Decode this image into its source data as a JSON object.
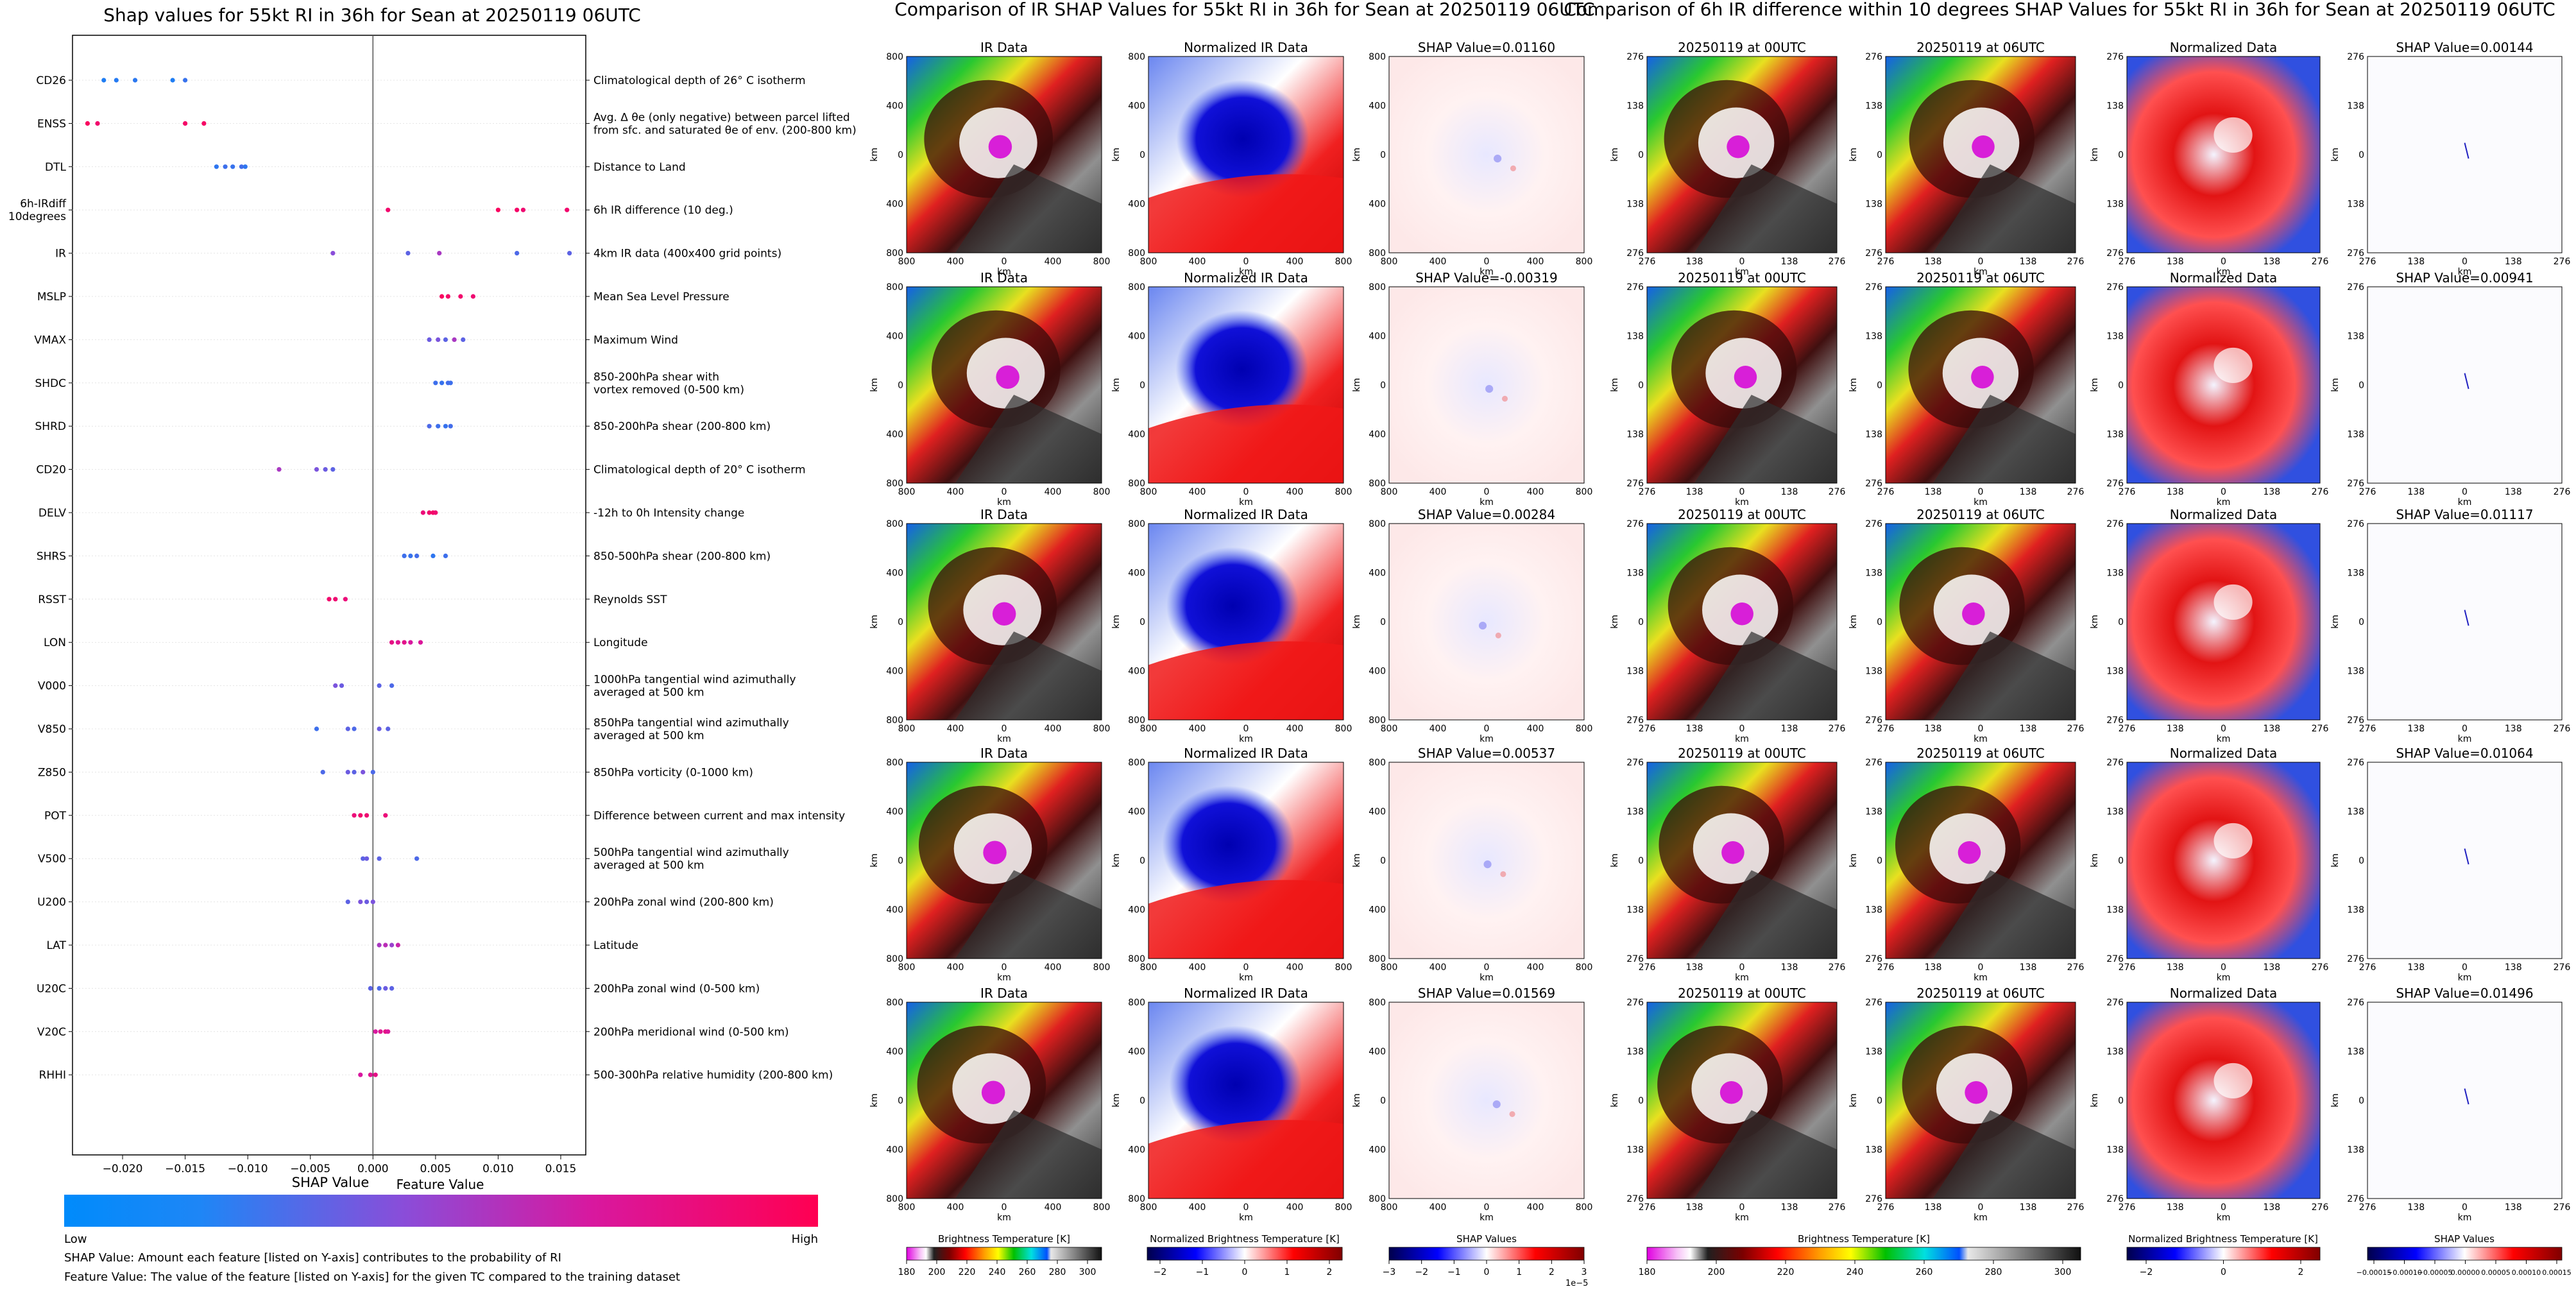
{
  "panel_shap": {
    "title": "Shap values for 55kt RI in 36h for Sean at 20250119 06UTC",
    "xlabel": "SHAP Value",
    "colorbar_title": "Feature Value",
    "colorbar_low": "Low",
    "colorbar_high": "High",
    "low_color": "#008bfb",
    "high_color": "#ff0052",
    "note1": "SHAP Value: Amount each feature [listed on Y-axis] contributes to the probability of RI",
    "note2": "Feature Value: The value of the feature [listed on Y-axis] for the given TC compared to the training dataset"
  },
  "panel_ir": {
    "title": "Comparison of IR SHAP Values for 55kt RI in 36h for Sean at 20250119 06UTC",
    "col_titles": [
      "IR Data",
      "Normalized IR Data"
    ],
    "shap_titles": [
      "SHAP Value=0.01160",
      "SHAP Value=-0.00319",
      "SHAP Value=0.00284",
      "SHAP Value=0.00537",
      "SHAP Value=0.01569"
    ],
    "axis_label": "km",
    "ticks": [
      "800",
      "400",
      "0",
      "400",
      "800"
    ],
    "cb1_label": "Brightness Temperature [K]",
    "cb1_ticks": [
      "180",
      "200",
      "220",
      "240",
      "260",
      "280",
      "300"
    ],
    "cb2_label": "Normalized Brightness Temperature [K]",
    "cb2_ticks": [
      "−2",
      "−1",
      "0",
      "1",
      "2"
    ],
    "cb3_label": "SHAP Values",
    "cb3_ticks": [
      "−3",
      "−2",
      "−1",
      "0",
      "1",
      "2",
      "3"
    ],
    "cb3_exp": "1e−5"
  },
  "panel_diff": {
    "title": "Comparison of 6h IR difference within 10 degrees SHAP Values for 55kt RI in 36h for Sean at 20250119 06UTC",
    "col_titles": [
      "20250119 at 00UTC",
      "20250119 at 06UTC",
      "Normalized Data"
    ],
    "shap_titles": [
      "SHAP Value=0.00144",
      "SHAP Value=0.00941",
      "SHAP Value=0.01117",
      "SHAP Value=0.01064",
      "SHAP Value=0.01496"
    ],
    "axis_label": "km",
    "ticks": [
      "276",
      "138",
      "0",
      "138",
      "276"
    ],
    "cb1_label": "Brightness Temperature [K]",
    "cb1_ticks": [
      "180",
      "200",
      "220",
      "240",
      "260",
      "280",
      "300"
    ],
    "cb2_label": "Normalized Brightness Temperature [K]",
    "cb2_ticks": [
      "−2",
      "0",
      "2"
    ],
    "cb3_label": "SHAP Values",
    "cb3_ticks": [
      "−0.00015",
      "−0.00010",
      "−0.00005",
      "0.00000",
      "0.00005",
      "0.00010",
      "0.00015"
    ]
  },
  "chart_data": {
    "type": "scatter",
    "title": "Shap values for 55kt RI in 36h for Sean at 20250119 06UTC",
    "xlabel": "SHAP Value",
    "xlim": [
      -0.024,
      0.017
    ],
    "xticks": [
      -0.02,
      -0.015,
      -0.01,
      -0.005,
      0.0,
      0.005,
      0.01,
      0.015
    ],
    "xtick_labels": [
      "−0.020",
      "−0.015",
      "−0.010",
      "−0.005",
      "0.000",
      "0.005",
      "0.010",
      "0.015"
    ],
    "features": [
      {
        "name": "CD26",
        "desc": [
          "Climatological depth of 26° C isotherm"
        ],
        "points": [
          [
            -0.0215,
            0.1
          ],
          [
            -0.0205,
            0.12
          ],
          [
            -0.019,
            0.14
          ],
          [
            -0.016,
            0.1
          ],
          [
            -0.015,
            0.18
          ]
        ]
      },
      {
        "name": "ENSS",
        "desc": [
          "Avg. Δ θe (only negative) between parcel lifted",
          "from sfc. and saturated θe of env. (200-800 km)"
        ],
        "points": [
          [
            -0.0228,
            0.95
          ],
          [
            -0.022,
            0.9
          ],
          [
            -0.015,
            0.92
          ],
          [
            -0.0135,
            0.93
          ]
        ]
      },
      {
        "name": "DTL",
        "desc": [
          "Distance to Land"
        ],
        "points": [
          [
            -0.0125,
            0.15
          ],
          [
            -0.0118,
            0.2
          ],
          [
            -0.0112,
            0.18
          ],
          [
            -0.0105,
            0.22
          ],
          [
            -0.0102,
            0.15
          ]
        ]
      },
      {
        "name": "6h-IRdiff\n10degrees",
        "desc": [
          "6h IR difference (10 deg.)"
        ],
        "points": [
          [
            0.0012,
            0.9
          ],
          [
            0.01,
            0.95
          ],
          [
            0.0115,
            0.92
          ],
          [
            0.012,
            0.88
          ],
          [
            0.0155,
            0.9
          ]
        ]
      },
      {
        "name": "IR",
        "desc": [
          "4km IR data (400x400 grid points)"
        ],
        "points": [
          [
            -0.0032,
            0.45
          ],
          [
            0.0028,
            0.3
          ],
          [
            0.0053,
            0.55
          ],
          [
            0.0115,
            0.25
          ],
          [
            0.0157,
            0.3
          ]
        ]
      },
      {
        "name": "MSLP",
        "desc": [
          "Mean Sea Level Pressure"
        ],
        "points": [
          [
            0.0055,
            0.95
          ],
          [
            0.006,
            0.92
          ],
          [
            0.007,
            0.9
          ],
          [
            0.008,
            0.88
          ]
        ]
      },
      {
        "name": "VMAX",
        "desc": [
          "Maximum Wind"
        ],
        "points": [
          [
            0.0045,
            0.35
          ],
          [
            0.0052,
            0.4
          ],
          [
            0.0058,
            0.3
          ],
          [
            0.0065,
            0.55
          ],
          [
            0.0072,
            0.3
          ]
        ]
      },
      {
        "name": "SHDC",
        "desc": [
          "850-200hPa shear with",
          "vortex removed (0-500 km)"
        ],
        "points": [
          [
            0.005,
            0.2
          ],
          [
            0.0055,
            0.18
          ],
          [
            0.006,
            0.22
          ],
          [
            0.0062,
            0.2
          ]
        ]
      },
      {
        "name": "SHRD",
        "desc": [
          "850-200hPa shear (200-800 km)"
        ],
        "points": [
          [
            0.0045,
            0.25
          ],
          [
            0.0052,
            0.2
          ],
          [
            0.0058,
            0.18
          ],
          [
            0.0062,
            0.22
          ]
        ]
      },
      {
        "name": "CD20",
        "desc": [
          "Climatological depth of 20° C isotherm"
        ],
        "points": [
          [
            -0.0075,
            0.55
          ],
          [
            -0.0045,
            0.4
          ],
          [
            -0.0038,
            0.35
          ],
          [
            -0.0032,
            0.3
          ]
        ]
      },
      {
        "name": "DELV",
        "desc": [
          "-12h to 0h Intensity change"
        ],
        "points": [
          [
            0.004,
            0.85
          ],
          [
            0.0045,
            0.9
          ],
          [
            0.0048,
            0.92
          ],
          [
            0.005,
            0.88
          ]
        ]
      },
      {
        "name": "SHRS",
        "desc": [
          "850-500hPa shear (200-800 km)"
        ],
        "points": [
          [
            0.0025,
            0.2
          ],
          [
            0.003,
            0.18
          ],
          [
            0.0035,
            0.22
          ],
          [
            0.0048,
            0.15
          ],
          [
            0.0058,
            0.2
          ]
        ]
      },
      {
        "name": "RSST",
        "desc": [
          "Reynolds SST"
        ],
        "points": [
          [
            -0.0035,
            0.9
          ],
          [
            -0.003,
            0.88
          ],
          [
            -0.0022,
            0.85
          ]
        ]
      },
      {
        "name": "LON",
        "desc": [
          "Longitude"
        ],
        "points": [
          [
            0.0015,
            0.8
          ],
          [
            0.002,
            0.75
          ],
          [
            0.0025,
            0.78
          ],
          [
            0.003,
            0.7
          ],
          [
            0.0038,
            0.72
          ]
        ]
      },
      {
        "name": "V000",
        "desc": [
          "1000hPa tangential wind azimuthally",
          "averaged at 500 km"
        ],
        "points": [
          [
            -0.003,
            0.4
          ],
          [
            -0.0025,
            0.35
          ],
          [
            0.0005,
            0.3
          ],
          [
            0.0015,
            0.25
          ]
        ]
      },
      {
        "name": "V850",
        "desc": [
          "850hPa tangential wind azimuthally",
          "averaged at 500 km"
        ],
        "points": [
          [
            -0.0045,
            0.2
          ],
          [
            -0.002,
            0.3
          ],
          [
            -0.0015,
            0.25
          ],
          [
            0.0005,
            0.35
          ],
          [
            0.0012,
            0.3
          ]
        ]
      },
      {
        "name": "Z850",
        "desc": [
          "850hPa vorticity (0-1000 km)"
        ],
        "points": [
          [
            -0.004,
            0.25
          ],
          [
            -0.002,
            0.35
          ],
          [
            -0.0015,
            0.3
          ],
          [
            -0.0008,
            0.4
          ],
          [
            0.0,
            0.25
          ]
        ]
      },
      {
        "name": "POT",
        "desc": [
          "Difference between current and max intensity"
        ],
        "points": [
          [
            -0.0015,
            0.85
          ],
          [
            -0.001,
            0.9
          ],
          [
            -0.0005,
            0.88
          ],
          [
            0.001,
            0.85
          ]
        ]
      },
      {
        "name": "V500",
        "desc": [
          "500hPa tangential wind azimuthally",
          "averaged at 500 km"
        ],
        "points": [
          [
            -0.0008,
            0.3
          ],
          [
            -0.0005,
            0.35
          ],
          [
            0.0005,
            0.3
          ],
          [
            0.0035,
            0.25
          ]
        ]
      },
      {
        "name": "U200",
        "desc": [
          "200hPa zonal wind (200-800 km)"
        ],
        "points": [
          [
            -0.002,
            0.3
          ],
          [
            -0.001,
            0.4
          ],
          [
            -0.0005,
            0.35
          ],
          [
            0.0,
            0.4
          ]
        ]
      },
      {
        "name": "LAT",
        "desc": [
          "Latitude"
        ],
        "points": [
          [
            0.0005,
            0.55
          ],
          [
            0.001,
            0.6
          ],
          [
            0.0015,
            0.5
          ],
          [
            0.002,
            0.65
          ]
        ]
      },
      {
        "name": "U20C",
        "desc": [
          "200hPa zonal wind (0-500 km)"
        ],
        "points": [
          [
            -0.0002,
            0.3
          ],
          [
            0.0005,
            0.25
          ],
          [
            0.001,
            0.35
          ],
          [
            0.0015,
            0.3
          ]
        ]
      },
      {
        "name": "V20C",
        "desc": [
          "200hPa meridional wind (0-500 km)"
        ],
        "points": [
          [
            0.0002,
            0.7
          ],
          [
            0.0006,
            0.75
          ],
          [
            0.001,
            0.8
          ],
          [
            0.0012,
            0.72
          ]
        ]
      },
      {
        "name": "RHHI",
        "desc": [
          "500-300hPa relative humidity (200-800 km)"
        ],
        "points": [
          [
            -0.001,
            0.7
          ],
          [
            -0.0002,
            0.75
          ],
          [
            0.0002,
            0.8
          ]
        ]
      }
    ]
  }
}
